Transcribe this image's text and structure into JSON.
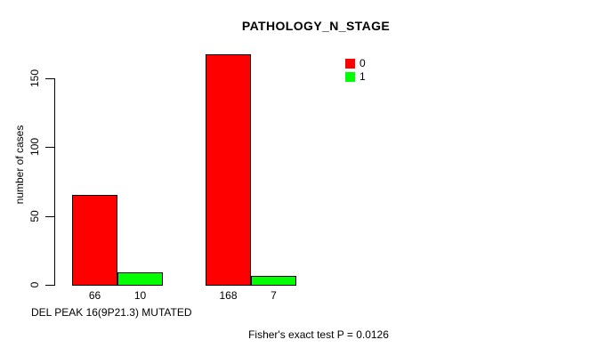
{
  "chart_data": {
    "type": "bar",
    "title": "PATHOLOGY_N_STAGE",
    "xlabel": "DEL PEAK 16(9P21.3) MUTATED",
    "ylabel": "number of cases",
    "ylim": [
      0,
      175
    ],
    "yticks": [
      0,
      50,
      100,
      150
    ],
    "grid": false,
    "legend_position": "top-right",
    "legend": [
      {
        "label": "0",
        "color": "#FF0000"
      },
      {
        "label": "1",
        "color": "#00FF00"
      }
    ],
    "series": [
      {
        "name": "0",
        "color": "#FF0000",
        "values": [
          66,
          168
        ]
      },
      {
        "name": "1",
        "color": "#00FF00",
        "values": [
          10,
          7
        ]
      }
    ],
    "groups": 2,
    "bar_value_labels": [
      "66",
      "10",
      "168",
      "7"
    ],
    "annotation": "Fisher's exact test P = 0.0126"
  }
}
